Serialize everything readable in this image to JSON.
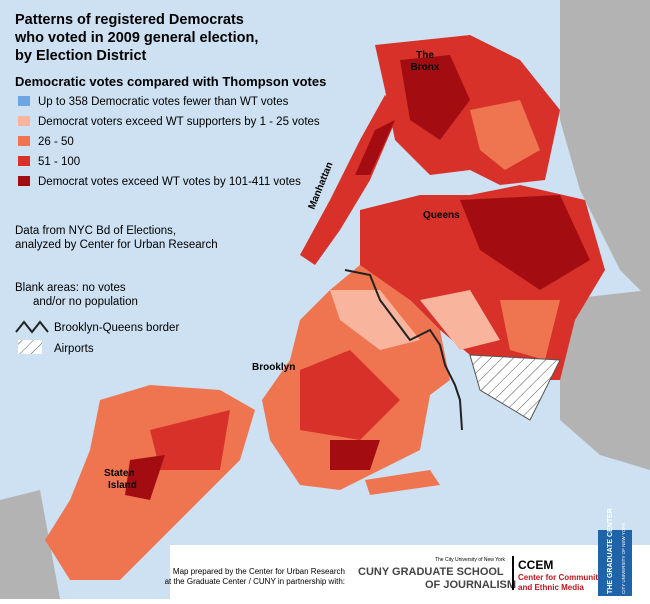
{
  "header": {
    "title_lines": [
      "Patterns of registered Democrats",
      "who voted in 2009 general election,",
      "by Election District"
    ],
    "subtitle": "Democratic votes compared with Thompson votes"
  },
  "legend": {
    "items": [
      {
        "label": "Up to 358 Democratic votes fewer than WT votes",
        "color": "#6fa6e2"
      },
      {
        "label": "Democrat voters exceed WT supporters by 1 - 25 votes",
        "color": "#f8b49c"
      },
      {
        "label": "26 - 50",
        "color": "#ef7551"
      },
      {
        "label": "51 - 100",
        "color": "#d8312a"
      },
      {
        "label": "Democrat votes exceed WT votes by 101-411 votes",
        "color": "#a30d12"
      }
    ]
  },
  "notes": {
    "source": [
      "Data from NYC Bd of Elections,",
      "analyzed by Center for Urban Research"
    ],
    "blank": [
      "Blank areas: no votes",
      "and/or no population"
    ],
    "border": "Brooklyn-Queens border",
    "airports": "Airports"
  },
  "places": {
    "bronx": [
      "The",
      "Bronx"
    ],
    "manhattan": "Manhattan",
    "queens": "Queens",
    "brooklyn": "Brooklyn",
    "staten_island": [
      "Staten",
      "Island"
    ]
  },
  "credits": {
    "lines": [
      "Map prepared by the Center for Urban Research",
      "at the Graduate Center / CUNY in partnership with:"
    ]
  },
  "logos": {
    "cuny_top": "The City University of New York",
    "cuny_line1": "CUNY GRADUATE SCHOOL",
    "cuny_line2": "OF JOURNALISM",
    "ccem": "CCEM",
    "ccem_line1": "Center for Community",
    "ccem_line2": "and Ethnic Media",
    "gc": "THE GRADUATE CENTER",
    "gc_sub": "CITY UNIVERSITY OF NEW YORK"
  }
}
